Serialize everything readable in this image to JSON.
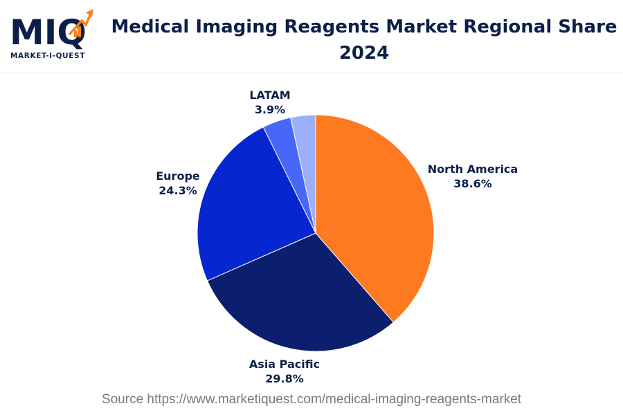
{
  "logo": {
    "mark_text": "MIQ",
    "wordmark": "MARKET-I-QUEST"
  },
  "title": "Medical Imaging Reagents Market Regional Share 2024",
  "source": "Source https://www.marketiquest.com/medical-imaging-reagents-market",
  "colors": {
    "title": "#0c1f4a",
    "north_america": "#fd7a21",
    "asia_pacific": "#0c1f6e",
    "europe": "#0627cf",
    "latam": "#4667f8",
    "other": "#9caffa",
    "logo_accent": "#f58220"
  },
  "chart_data": {
    "type": "pie",
    "title": "Medical Imaging Reagents Market Regional Share 2024",
    "start_angle_deg": 0,
    "direction": "clockwise",
    "slices": [
      {
        "label": "North America",
        "value": 38.6,
        "display": "38.6%",
        "color": "#fd7a21"
      },
      {
        "label": "Asia Pacific",
        "value": 29.8,
        "display": "29.8%",
        "color": "#0c1f6e"
      },
      {
        "label": "Europe",
        "value": 24.3,
        "display": "24.3%",
        "color": "#0627cf"
      },
      {
        "label": "LATAM",
        "value": 3.9,
        "display": "3.9%",
        "color": "#4667f8"
      },
      {
        "label": "",
        "value": 3.4,
        "display": "",
        "color": "#9caffa"
      }
    ]
  }
}
